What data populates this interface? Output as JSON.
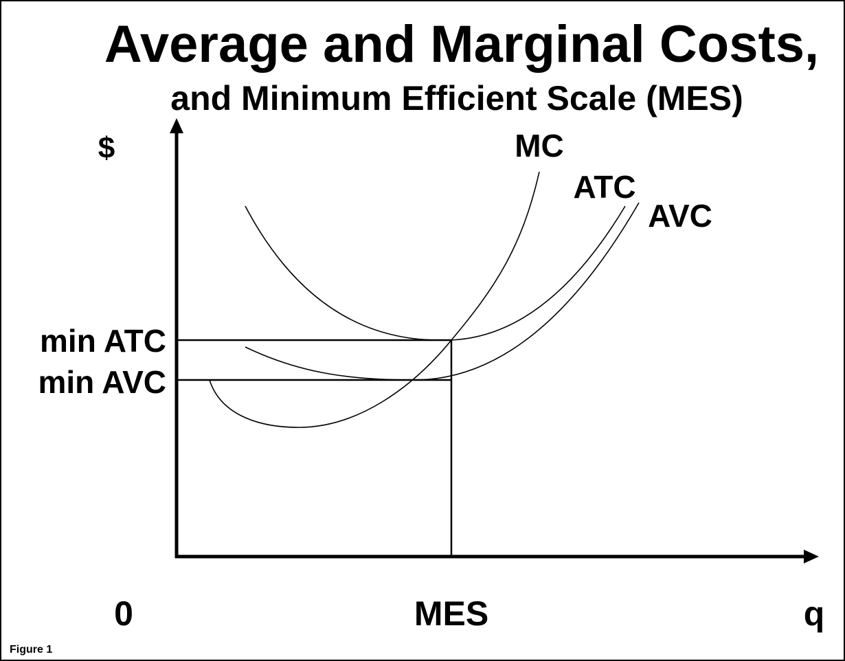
{
  "title": "Average and Marginal Costs,",
  "subtitle": "and Minimum Efficient Scale (MES)",
  "y_axis_label": "$",
  "x_axis_label": "q",
  "origin_label": "0",
  "curves": [
    "MC",
    "ATC",
    "AVC"
  ],
  "y_markers": [
    "min ATC",
    "min AVC"
  ],
  "x_marker": "MES",
  "caption": "Figure 1"
}
